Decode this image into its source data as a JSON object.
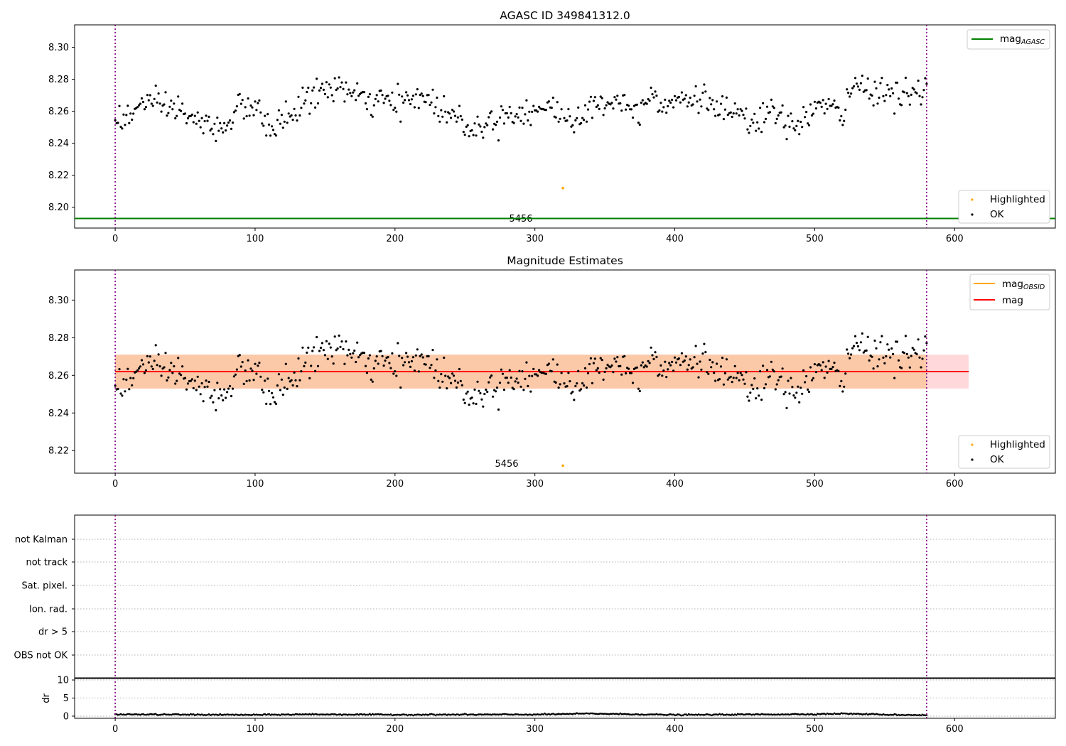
{
  "chart_data": [
    {
      "type": "scatter",
      "title": "AGASC ID 349841312.0",
      "xlim": [
        -29,
        672
      ],
      "ylim": [
        8.187,
        8.314
      ],
      "xticks": [
        0,
        100,
        200,
        300,
        400,
        500,
        600
      ],
      "yticks": [
        8.2,
        8.22,
        8.24,
        8.26,
        8.28,
        8.3
      ],
      "ytick_labels": [
        "8.20",
        "8.22",
        "8.24",
        "8.26",
        "8.28",
        "8.30"
      ],
      "vlines": [
        0,
        580
      ],
      "vline_color": "#800080",
      "hline": {
        "value": 8.193,
        "color": "#008000"
      },
      "annotation": {
        "text": "5456",
        "x": 290
      },
      "legend_lines": [
        {
          "label": "mag",
          "subscript": "AGASC",
          "color": "#008000"
        }
      ],
      "legend_points": [
        {
          "label": "Highlighted",
          "color": "#ffa500"
        },
        {
          "label": "OK",
          "color": "#000000"
        }
      ],
      "highlighted_point": {
        "x": 320,
        "y": 8.212
      },
      "series_trend": [
        [
          0,
          8.256
        ],
        [
          12,
          8.256
        ],
        [
          20,
          8.268
        ],
        [
          30,
          8.262
        ],
        [
          45,
          8.262
        ],
        [
          60,
          8.252
        ],
        [
          75,
          8.249
        ],
        [
          90,
          8.263
        ],
        [
          100,
          8.262
        ],
        [
          108,
          8.25
        ],
        [
          120,
          8.254
        ],
        [
          130,
          8.262
        ],
        [
          145,
          8.272
        ],
        [
          162,
          8.276
        ],
        [
          172,
          8.268
        ],
        [
          185,
          8.266
        ],
        [
          205,
          8.265
        ],
        [
          220,
          8.27
        ],
        [
          232,
          8.262
        ],
        [
          248,
          8.254
        ],
        [
          258,
          8.249
        ],
        [
          272,
          8.256
        ],
        [
          290,
          8.26
        ],
        [
          310,
          8.262
        ],
        [
          325,
          8.255
        ],
        [
          340,
          8.26
        ],
        [
          350,
          8.266
        ],
        [
          360,
          8.268
        ],
        [
          375,
          8.258
        ],
        [
          382,
          8.274
        ],
        [
          392,
          8.265
        ],
        [
          405,
          8.268
        ],
        [
          420,
          8.268
        ],
        [
          440,
          8.258
        ],
        [
          455,
          8.252
        ],
        [
          470,
          8.26
        ],
        [
          480,
          8.25
        ],
        [
          492,
          8.256
        ],
        [
          505,
          8.264
        ],
        [
          520,
          8.258
        ],
        [
          528,
          8.276
        ],
        [
          545,
          8.274
        ],
        [
          560,
          8.27
        ],
        [
          570,
          8.27
        ],
        [
          580,
          8.272
        ]
      ],
      "scatter_spread": 0.0045
    },
    {
      "type": "scatter",
      "title": "Magnitude Estimates",
      "xlim": [
        -29,
        672
      ],
      "ylim": [
        8.208,
        8.316
      ],
      "xticks": [
        0,
        100,
        200,
        300,
        400,
        500,
        600
      ],
      "yticks": [
        8.22,
        8.24,
        8.26,
        8.28,
        8.3
      ],
      "ytick_labels": [
        "8.22",
        "8.24",
        "8.26",
        "8.28",
        "8.30"
      ],
      "vlines": [
        0,
        580
      ],
      "vline_color": "#800080",
      "mag_line": {
        "value": 8.262,
        "color": "#ff0000",
        "x_range": [
          0,
          610
        ]
      },
      "band_outer": {
        "low": 8.253,
        "high": 8.271,
        "x_range": [
          0,
          610
        ],
        "color": "#ffd8dc"
      },
      "band_inner": {
        "low": 8.253,
        "high": 8.271,
        "x_range": [
          0,
          580
        ],
        "color": "#fbc8a8"
      },
      "annotation": {
        "text": "5456",
        "x": 290
      },
      "legend_lines": [
        {
          "label": "mag",
          "subscript": "OBSID",
          "color": "#ffa500"
        },
        {
          "label": "mag",
          "subscript": "",
          "color": "#ff0000"
        }
      ],
      "legend_points": [
        {
          "label": "Highlighted",
          "color": "#ffa500"
        },
        {
          "label": "OK",
          "color": "#000000"
        }
      ],
      "highlighted_point": {
        "x": 320,
        "y": 8.212
      }
    },
    {
      "type": "scatter",
      "title": "",
      "xlim": [
        -29,
        672
      ],
      "flag_labels": [
        "not Kalman",
        "not track",
        "Sat. pixel.",
        "Ion. rad.",
        "dr > 5",
        "OBS not OK"
      ],
      "vlines": [
        0,
        580
      ],
      "vline_color": "#800080"
    },
    {
      "type": "scatter",
      "title": "",
      "xlim": [
        -29,
        672
      ],
      "ylim": [
        -0.6,
        10.6
      ],
      "xticks": [
        0,
        100,
        200,
        300,
        400,
        500,
        600
      ],
      "yticks": [
        0,
        5,
        10
      ],
      "ytick_labels": [
        "0",
        "5",
        "10"
      ],
      "ylabel": "dr",
      "vlines": [
        0,
        580
      ],
      "vline_color": "#800080",
      "dr_trend": [
        [
          0,
          0.5
        ],
        [
          100,
          0.35
        ],
        [
          140,
          0.5
        ],
        [
          200,
          0.4
        ],
        [
          300,
          0.45
        ],
        [
          340,
          0.7
        ],
        [
          400,
          0.35
        ],
        [
          500,
          0.55
        ],
        [
          520,
          0.7
        ],
        [
          560,
          0.35
        ],
        [
          580,
          0.3
        ]
      ]
    }
  ]
}
